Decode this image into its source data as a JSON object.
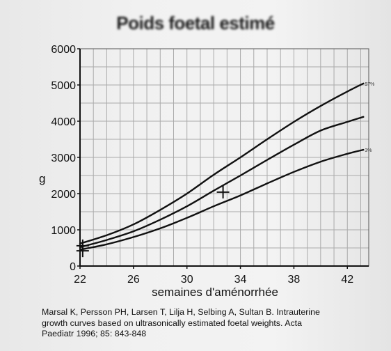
{
  "chart_data": {
    "type": "line",
    "title": "Poids foetal estimé",
    "xlabel": "semaines d'aménorrhée",
    "ylabel": "g",
    "xlim": [
      22,
      43.6
    ],
    "ylim": [
      0,
      6000
    ],
    "xticks": [
      22,
      26,
      30,
      34,
      38,
      42
    ],
    "yticks": [
      0,
      1000,
      2000,
      3000,
      4000,
      5000,
      6000
    ],
    "grid": true,
    "series": [
      {
        "name": "97%",
        "x": [
          22,
          24,
          26,
          28,
          30,
          32,
          34,
          36,
          38,
          40,
          42,
          43.2
        ],
        "y": [
          620,
          850,
          1150,
          1550,
          2000,
          2520,
          3000,
          3500,
          3980,
          4420,
          4820,
          5040
        ]
      },
      {
        "x": [
          22,
          24,
          26,
          28,
          30,
          32,
          34,
          36,
          38,
          40,
          42,
          43.2
        ],
        "y": [
          520,
          720,
          960,
          1280,
          1650,
          2080,
          2500,
          2930,
          3350,
          3740,
          3980,
          4120
        ]
      },
      {
        "name": "3%",
        "x": [
          22,
          24,
          26,
          28,
          30,
          32,
          34,
          36,
          38,
          40,
          42,
          43.2
        ],
        "y": [
          450,
          600,
          800,
          1040,
          1330,
          1650,
          1950,
          2280,
          2600,
          2880,
          3100,
          3210
        ]
      }
    ],
    "markers": [
      {
        "x": 22.2,
        "y": 560
      },
      {
        "x": 22.2,
        "y": 420
      },
      {
        "x": 32.7,
        "y": 2040
      }
    ]
  },
  "citation_lines": [
    "Marsal K, Persson PH, Larsen T, Lilja H, Selbing A, Sultan B. Intrauterine",
    "growth curves based on ultrasonically estimated foetal weights. Acta",
    "Paediatr 1996; 85: 843-848"
  ],
  "colors": {
    "line": "#111111",
    "grid": "#aaaaaa",
    "background": "#f1f1f1"
  }
}
